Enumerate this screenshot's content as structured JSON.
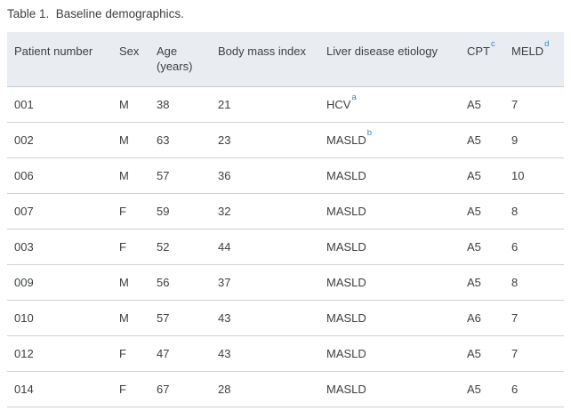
{
  "title": "Table 1.  Baseline demographics.",
  "colors": {
    "header_bg": "#e9edf1",
    "row_divider": "#ccd3da",
    "header_divider": "#c4cbd3",
    "text": "#3d4043",
    "footnote_marker_blue": "#2e86c1",
    "page_bg": "#ffffff"
  },
  "table": {
    "columns": [
      {
        "id": "patient-number",
        "label": "Patient number"
      },
      {
        "id": "sex",
        "label": "Sex"
      },
      {
        "id": "age",
        "label": "Age",
        "sublabel": "(years)"
      },
      {
        "id": "bmi",
        "label": "Body mass index"
      },
      {
        "id": "etiology",
        "label": "Liver disease etiology"
      },
      {
        "id": "cpt",
        "label": "CPT",
        "sup": "c"
      },
      {
        "id": "meld",
        "label": "MELD",
        "sup": "d"
      }
    ],
    "rows": [
      {
        "cells": [
          "001",
          "M",
          "38",
          "21",
          {
            "text": "HCV",
            "sup": "a"
          },
          "A5",
          "7"
        ]
      },
      {
        "cells": [
          "002",
          "M",
          "63",
          "23",
          {
            "text": "MASLD",
            "sup": "b"
          },
          "A5",
          "9"
        ]
      },
      {
        "cells": [
          "006",
          "M",
          "57",
          "36",
          "MASLD",
          "A5",
          "10"
        ]
      },
      {
        "cells": [
          "007",
          "F",
          "59",
          "32",
          "MASLD",
          "A5",
          "8"
        ]
      },
      {
        "cells": [
          "003",
          "F",
          "52",
          "44",
          "MASLD",
          "A5",
          "6"
        ]
      },
      {
        "cells": [
          "009",
          "M",
          "56",
          "37",
          "MASLD",
          "A5",
          "8"
        ]
      },
      {
        "cells": [
          "010",
          "M",
          "57",
          "43",
          "MASLD",
          "A6",
          "7"
        ]
      },
      {
        "cells": [
          "012",
          "F",
          "47",
          "43",
          "MASLD",
          "A5",
          "7"
        ]
      },
      {
        "cells": [
          "014",
          "F",
          "67",
          "28",
          "MASLD",
          "A5",
          "6"
        ]
      }
    ]
  }
}
